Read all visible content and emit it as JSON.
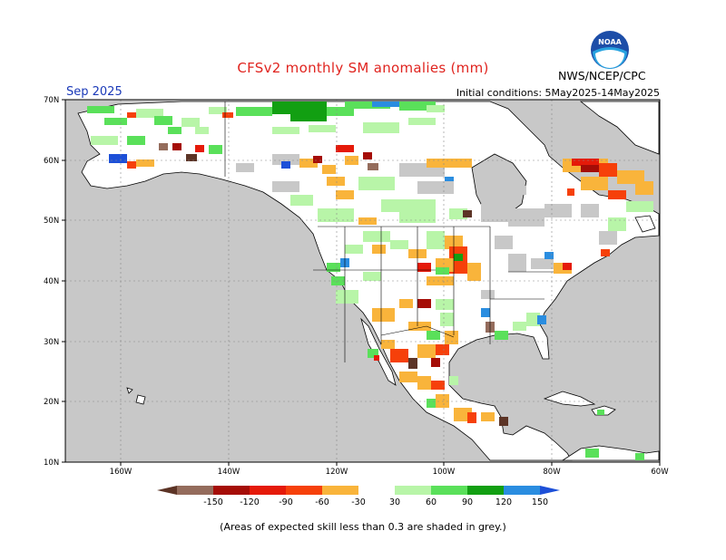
{
  "header": {
    "title": "CFSv2 monthly SM anomalies (mm)",
    "month": "Sep 2025",
    "agency": "NWS/NCEP/CPC",
    "initial_conditions": "Initial conditions: 5May2025-14May2025",
    "logo_text": "NOAA"
  },
  "axes": {
    "lat_labels": [
      "70N",
      "60N",
      "50N",
      "40N",
      "30N",
      "20N",
      "10N"
    ],
    "lon_labels": [
      "160W",
      "140W",
      "120W",
      "100W",
      "80W",
      "60W"
    ]
  },
  "colorbar": {
    "labels": [
      "-150",
      "-120",
      "-90",
      "-60",
      "-30",
      "30",
      "60",
      "90",
      "120",
      "150"
    ],
    "colors": [
      "#5c3426",
      "#946c5c",
      "#a50d07",
      "#e51a09",
      "#f6400a",
      "#f9b43b",
      "#ffffff",
      "#b8f5a8",
      "#5ae05a",
      "#129f12",
      "#2a8de0",
      "#1d50d8"
    ]
  },
  "colors": {
    "ocean": "#c8c8c8",
    "land": "#ffffff",
    "title": "#e0241f",
    "month": "#1a39b8"
  },
  "footnote": "(Areas of expected skill less than 0.3 are shaded in grey.)"
}
